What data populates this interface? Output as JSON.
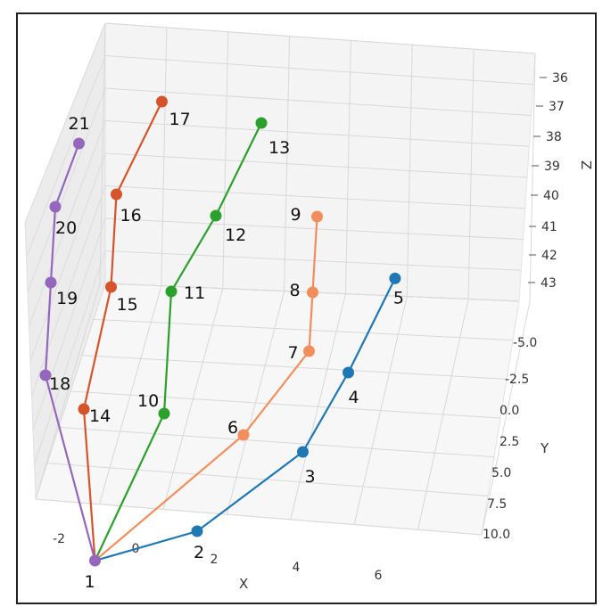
{
  "chart_data": {
    "type": "scatter",
    "title": "",
    "subtitle": "",
    "axes": {
      "x": {
        "label": "X",
        "ticks": [
          "-2",
          "0",
          "2",
          "4",
          "6"
        ]
      },
      "y": {
        "label": "Y",
        "ticks": [
          "-5.0",
          "-2.5",
          "0.0",
          "2.5",
          "5.0",
          "7.5",
          "10.0"
        ]
      },
      "z": {
        "label": "Z",
        "ticks": [
          "36",
          "37",
          "38",
          "39",
          "40",
          "41",
          "42",
          "43"
        ]
      }
    },
    "grid": true,
    "legend": "none",
    "series": [
      {
        "color": "#1f77b4",
        "points": [
          {
            "label": "1",
            "x": 0.5,
            "y": 4.5,
            "z": 43.5
          },
          {
            "label": "2",
            "x": 3.0,
            "y": 4.0,
            "z": 43.0
          },
          {
            "label": "3",
            "x": 5.5,
            "y": 1.5,
            "z": 42.5
          },
          {
            "label": "4",
            "x": 6.5,
            "y": -1.0,
            "z": 42.0
          },
          {
            "label": "5",
            "x": 7.5,
            "y": -4.5,
            "z": 41.8
          }
        ]
      },
      {
        "color": "#f28e5b",
        "points": [
          {
            "label": "1",
            "x": 0.5,
            "y": 4.5,
            "z": 43.5
          },
          {
            "label": "6",
            "x": 4.0,
            "y": 1.5,
            "z": 42.0
          },
          {
            "label": "7",
            "x": 5.5,
            "y": -0.5,
            "z": 41.0
          },
          {
            "label": "8",
            "x": 5.5,
            "y": -1.5,
            "z": 40.0
          },
          {
            "label": "9",
            "x": 5.5,
            "y": -2.5,
            "z": 38.5
          }
        ]
      },
      {
        "color": "#2ca02c",
        "points": [
          {
            "label": "1",
            "x": 0.5,
            "y": 4.5,
            "z": 43.5
          },
          {
            "label": "10",
            "x": 2.0,
            "y": 2.0,
            "z": 41.0
          },
          {
            "label": "11",
            "x": 2.0,
            "y": 0.5,
            "z": 38.5
          },
          {
            "label": "12",
            "x": 3.0,
            "y": -0.5,
            "z": 37.0
          },
          {
            "label": "13",
            "x": 4.0,
            "y": -1.5,
            "z": 35.0
          }
        ]
      },
      {
        "color": "#d6542b",
        "points": [
          {
            "label": "1",
            "x": 0.5,
            "y": 4.5,
            "z": 43.5
          },
          {
            "label": "14",
            "x": 0.0,
            "y": 2.5,
            "z": 40.5
          },
          {
            "label": "15",
            "x": 0.5,
            "y": 1.0,
            "z": 38.0
          },
          {
            "label": "16",
            "x": 0.5,
            "y": 0.0,
            "z": 36.0
          },
          {
            "label": "17",
            "x": 1.5,
            "y": -1.0,
            "z": 34.0
          }
        ]
      },
      {
        "color": "#9467bd",
        "points": [
          {
            "label": "1",
            "x": 0.5,
            "y": 4.5,
            "z": 43.5
          },
          {
            "label": "18",
            "x": -1.0,
            "y": 2.5,
            "z": 39.5
          },
          {
            "label": "19",
            "x": -1.0,
            "y": 1.5,
            "z": 37.5
          },
          {
            "label": "20",
            "x": -1.0,
            "y": 0.5,
            "z": 36.0
          },
          {
            "label": "21",
            "x": -0.5,
            "y": 0.0,
            "z": 34.5
          }
        ]
      }
    ]
  }
}
